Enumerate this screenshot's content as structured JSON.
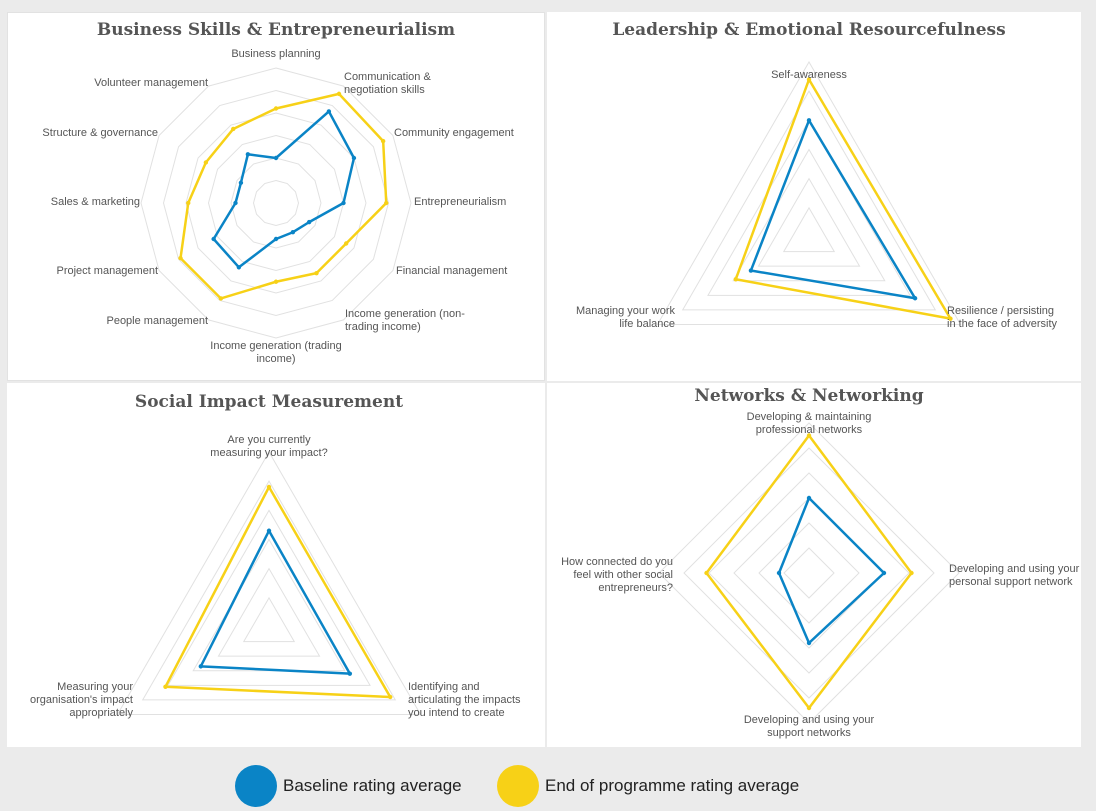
{
  "colors": {
    "baseline": "#0a84c6",
    "end": "#f7d117",
    "grid": "#e1e1e1",
    "text": "#555555",
    "title": "#555555"
  },
  "legend": {
    "baseline_label": "Baseline rating average",
    "end_label": "End of programme rating average"
  },
  "chart_data": [
    {
      "type": "radar",
      "title": "Business Skills & Entrepreneurialism",
      "axes": [
        "Business planning",
        "Communication &\nnegotiation skills",
        "Community engagement",
        "Entrepreneurialism",
        "Financial management",
        "Income generation (non-\ntrading income)",
        "Income generation (trading\nincome)",
        "People management",
        "Project management",
        "Sales & marketing",
        "Structure & governance",
        "Volunteer management"
      ],
      "rlim": [
        0,
        6
      ],
      "gridlines": 6,
      "series": [
        {
          "name": "Baseline rating average",
          "values": [
            2.0,
            4.7,
            4.0,
            3.0,
            1.7,
            1.5,
            1.6,
            3.3,
            3.2,
            1.8,
            1.8,
            2.5
          ]
        },
        {
          "name": "End of programme rating average",
          "values": [
            4.2,
            5.6,
            5.5,
            4.9,
            3.6,
            3.6,
            3.5,
            4.9,
            4.9,
            3.9,
            3.6,
            3.8
          ]
        }
      ]
    },
    {
      "type": "radar",
      "title": "Leadership & Emotional Resourcefulness",
      "axes": [
        "Self-awareness",
        "Resilience / persisting\nin the face of adversity",
        "Managing your work\nlife balance"
      ],
      "rlim": [
        0,
        6
      ],
      "gridlines": 6,
      "series": [
        {
          "name": "Baseline rating average",
          "values": [
            4.0,
            4.2,
            2.3
          ]
        },
        {
          "name": "End of programme rating average",
          "values": [
            5.4,
            5.6,
            2.9
          ]
        }
      ]
    },
    {
      "type": "radar",
      "title": "Social Impact Measurement",
      "axes": [
        "Are you currently\nmeasuring your impact?",
        "Identifying and\narticulating the impacts\nyou intend to create",
        "Measuring your\norganisation's impact\nappropriately"
      ],
      "rlim": [
        0,
        6
      ],
      "gridlines": 6,
      "series": [
        {
          "name": "Baseline rating average",
          "values": [
            3.3,
            3.2,
            2.7
          ]
        },
        {
          "name": "End of programme rating average",
          "values": [
            4.8,
            4.8,
            4.1
          ]
        }
      ]
    },
    {
      "type": "radar",
      "title": "Networks & Networking",
      "axes": [
        "Developing & maintaining\nprofessional networks",
        "Developing and using your\npersonal support network",
        "Developing and using your\nsupport networks",
        "How connected do you\nfeel with other social\nentrepreneurs?"
      ],
      "rlim": [
        0,
        6
      ],
      "gridlines": 6,
      "series": [
        {
          "name": "Baseline rating average",
          "values": [
            3.0,
            3.0,
            2.8,
            1.2
          ]
        },
        {
          "name": "End of programme rating average",
          "values": [
            5.5,
            4.1,
            5.4,
            4.1
          ]
        }
      ]
    }
  ]
}
